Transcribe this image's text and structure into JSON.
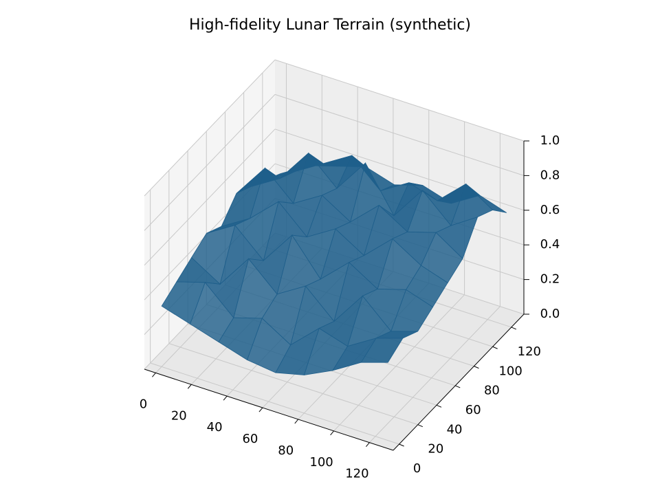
{
  "chart_data": {
    "type": "surface",
    "title": "High-fidelity Lunar Terrain (synthetic)",
    "color": "#1f5f8b",
    "x": [
      0,
      16,
      32,
      48,
      64,
      80,
      96,
      112,
      127
    ],
    "y": [
      0,
      16,
      32,
      48,
      64,
      80,
      96,
      112,
      127
    ],
    "z": [
      [
        0.35,
        0.3,
        0.25,
        0.2,
        0.18,
        0.22,
        0.3,
        0.4,
        0.45
      ],
      [
        0.4,
        0.45,
        0.3,
        0.35,
        0.25,
        0.4,
        0.35,
        0.45,
        0.5
      ],
      [
        0.45,
        0.35,
        0.55,
        0.4,
        0.5,
        0.35,
        0.55,
        0.4,
        0.45
      ],
      [
        0.5,
        0.6,
        0.45,
        0.65,
        0.45,
        0.6,
        0.5,
        0.55,
        0.5
      ],
      [
        0.45,
        0.55,
        0.7,
        0.55,
        0.65,
        0.55,
        0.7,
        0.6,
        0.55
      ],
      [
        0.55,
        0.75,
        0.6,
        0.7,
        0.6,
        0.75,
        0.65,
        0.7,
        0.6
      ],
      [
        0.5,
        0.6,
        0.8,
        0.65,
        0.85,
        0.6,
        0.8,
        0.65,
        0.75
      ],
      [
        0.45,
        0.55,
        0.65,
        0.75,
        0.6,
        0.7,
        0.65,
        0.8,
        0.7
      ],
      [
        0.4,
        0.5,
        0.55,
        0.6,
        0.55,
        0.6,
        0.55,
        0.65,
        0.6
      ]
    ],
    "xlim": [
      -6.35,
      133.35
    ],
    "ylim": [
      -6.35,
      133.35
    ],
    "zlim": [
      0,
      1
    ],
    "xticks": [
      0,
      20,
      40,
      60,
      80,
      100,
      120
    ],
    "yticks": [
      0,
      20,
      40,
      60,
      80,
      100,
      120
    ],
    "zticks": [
      0.0,
      0.2,
      0.4,
      0.6,
      0.8,
      1.0
    ],
    "grid": true
  }
}
